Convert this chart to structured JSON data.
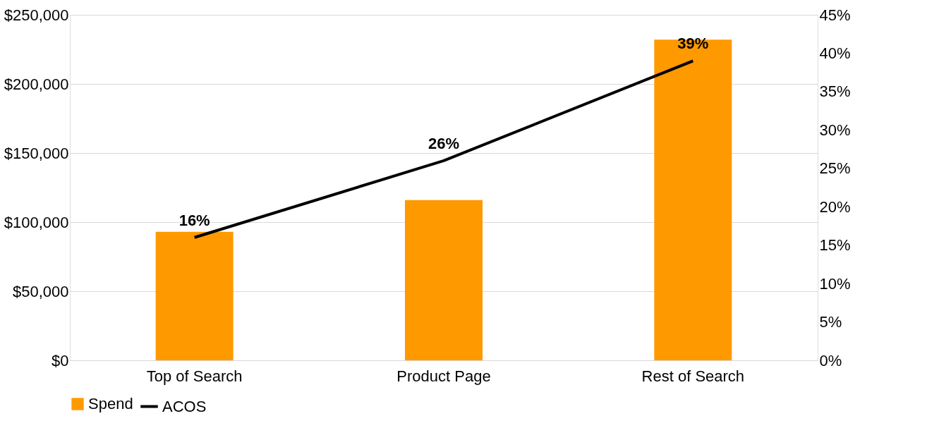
{
  "chart_data": {
    "type": "bar",
    "categories": [
      "Top of Search",
      "Product Page",
      "Rest of Search"
    ],
    "series": [
      {
        "name": "Spend",
        "color": "#ff9900",
        "values": [
          93000,
          116000,
          232000
        ]
      },
      {
        "name": "ACOS",
        "type": "line",
        "axis": "y2",
        "color": "#000000",
        "values": [
          16,
          26,
          39
        ],
        "value_labels": [
          "16%",
          "26%",
          "39%"
        ]
      }
    ],
    "ylim": [
      0,
      250000
    ],
    "yticks": [
      {
        "value": 0,
        "label": "$0"
      },
      {
        "value": 50000,
        "label": "$50,000"
      },
      {
        "value": 100000,
        "label": "$100,000"
      },
      {
        "value": 150000,
        "label": "$150,000"
      },
      {
        "value": 200000,
        "label": "$200,000"
      },
      {
        "value": 250000,
        "label": "$250,000"
      }
    ],
    "y2lim": [
      0,
      45
    ],
    "y2ticks": [
      {
        "value": 0,
        "label": "0%"
      },
      {
        "value": 5,
        "label": "5%"
      },
      {
        "value": 10,
        "label": "10%"
      },
      {
        "value": 15,
        "label": "15%"
      },
      {
        "value": 20,
        "label": "20%"
      },
      {
        "value": 25,
        "label": "25%"
      },
      {
        "value": 30,
        "label": "30%"
      },
      {
        "value": 35,
        "label": "35%"
      },
      {
        "value": 40,
        "label": "40%"
      },
      {
        "value": 45,
        "label": "45%"
      }
    ],
    "grid": "y",
    "legend": "bottom",
    "marker": "none",
    "line_style": "solid"
  }
}
